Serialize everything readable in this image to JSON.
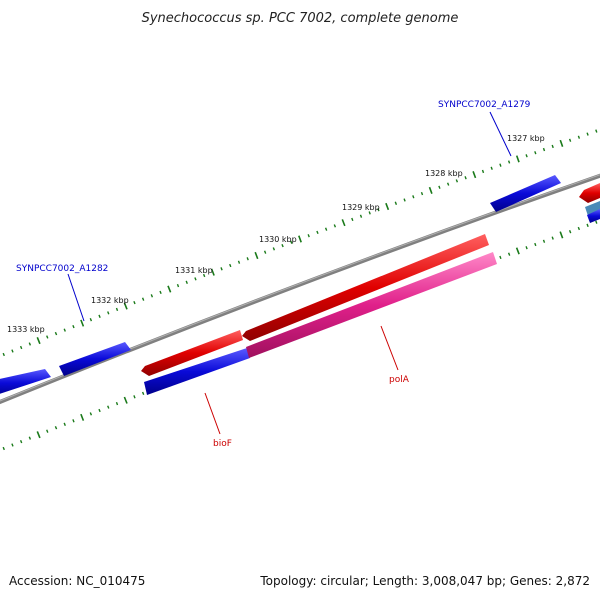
{
  "title": "Synechococcus sp. PCC 7002, complete genome",
  "footer": {
    "accession": "Accession: NC_010475",
    "summary": "Topology: circular; Length: 3,008,047 bp; Genes: 2,872"
  },
  "colors": {
    "backbone": "#808080",
    "tick": "#1a7a1a",
    "gene_blue": "#0a0ad8",
    "gene_red": "#e00000",
    "gene_pink": "#e0208a",
    "label_blue": "#0000cc",
    "label_red": "#cc0000"
  },
  "kbp_labels": [
    "1327 kbp",
    "1328 kbp",
    "1329 kbp",
    "1330 kbp",
    "1331 kbp",
    "1332 kbp",
    "1333 kbp"
  ],
  "gene_labels": {
    "a1279": "SYNPCC7002_A1279",
    "a1282": "SYNPCC7002_A1282",
    "bioF": "bioF",
    "polA": "polA"
  }
}
